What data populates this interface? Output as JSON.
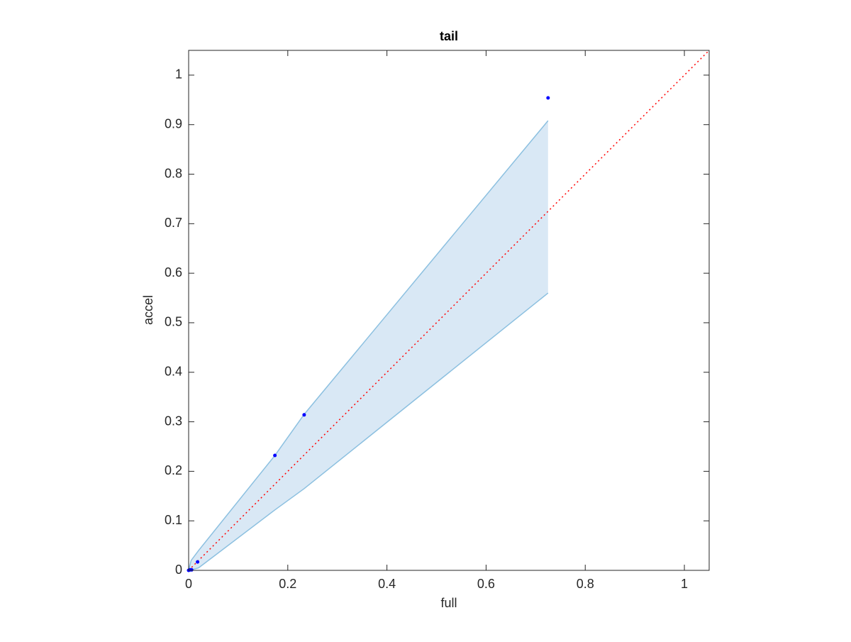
{
  "chart_data": {
    "type": "scatter",
    "title": "tail",
    "xlabel": "full",
    "ylabel": "accel",
    "xlim": [
      0,
      1.05
    ],
    "ylim": [
      0,
      1.05
    ],
    "xticks": [
      0,
      0.2,
      0.4,
      0.6,
      0.8,
      1
    ],
    "yticks": [
      0,
      0.1,
      0.2,
      0.3,
      0.4,
      0.5,
      0.6,
      0.7,
      0.8,
      0.9,
      1
    ],
    "band": {
      "x": [
        0,
        0.005,
        0.02,
        0.174,
        0.233,
        0.725
      ],
      "upper": [
        0,
        0.02,
        0.04,
        0.232,
        0.315,
        0.908
      ],
      "lower": [
        0,
        0.001,
        0.005,
        0.122,
        0.165,
        0.56
      ],
      "color": "#d9e8f5",
      "edge_color": "#8cc0e0"
    },
    "reference": {
      "x": [
        0,
        1.05
      ],
      "values": [
        0,
        1.05
      ],
      "color": "#ff0000"
    },
    "series": [
      {
        "color": "#0000ff",
        "x": [
          0,
          0.003,
          0.006,
          0.018,
          0.174,
          0.233,
          0.725
        ],
        "values": [
          0,
          0.001,
          0.001,
          0.017,
          0.232,
          0.314,
          0.954
        ]
      }
    ]
  }
}
